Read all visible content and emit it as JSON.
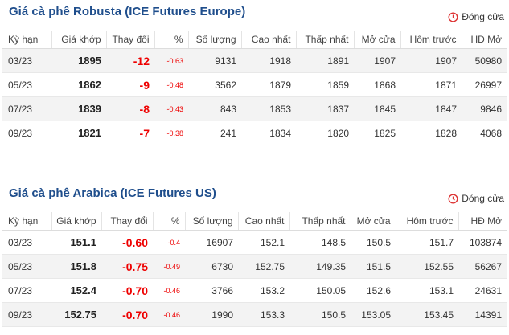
{
  "sections": [
    {
      "title": "Giá cà phê Robusta (ICE Futures Europe)",
      "status": "Đóng cửa",
      "columns": [
        "Kỳ hạn",
        "Giá khớp",
        "Thay đổi",
        "%",
        "Số lượng",
        "Cao nhất",
        "Thấp nhất",
        "Mở cửa",
        "Hôm trước",
        "HĐ Mở"
      ],
      "rows": [
        [
          "03/23",
          "1895",
          "-12",
          "-0.63",
          "9131",
          "1918",
          "1891",
          "1907",
          "1907",
          "50980"
        ],
        [
          "05/23",
          "1862",
          "-9",
          "-0.48",
          "3562",
          "1879",
          "1859",
          "1868",
          "1871",
          "26997"
        ],
        [
          "07/23",
          "1839",
          "-8",
          "-0.43",
          "843",
          "1853",
          "1837",
          "1845",
          "1847",
          "9846"
        ],
        [
          "09/23",
          "1821",
          "-7",
          "-0.38",
          "241",
          "1834",
          "1820",
          "1825",
          "1828",
          "4068"
        ]
      ]
    },
    {
      "title": "Giá cà phê Arabica (ICE Futures US)",
      "status": "Đóng cửa",
      "columns": [
        "Kỳ hạn",
        "Giá khớp",
        "Thay đổi",
        "%",
        "Số lượng",
        "Cao nhất",
        "Thấp nhất",
        "Mở cửa",
        "Hôm trước",
        "HĐ Mở"
      ],
      "rows": [
        [
          "03/23",
          "151.1",
          "-0.60",
          "-0.4",
          "16907",
          "152.1",
          "148.5",
          "150.5",
          "151.7",
          "103874"
        ],
        [
          "05/23",
          "151.8",
          "-0.75",
          "-0.49",
          "6730",
          "152.75",
          "149.35",
          "151.5",
          "152.55",
          "56267"
        ],
        [
          "07/23",
          "152.4",
          "-0.70",
          "-0.46",
          "3766",
          "153.2",
          "150.05",
          "152.6",
          "153.1",
          "24631"
        ],
        [
          "09/23",
          "152.75",
          "-0.70",
          "-0.46",
          "1990",
          "153.3",
          "150.5",
          "153.05",
          "153.45",
          "14391"
        ]
      ]
    }
  ]
}
